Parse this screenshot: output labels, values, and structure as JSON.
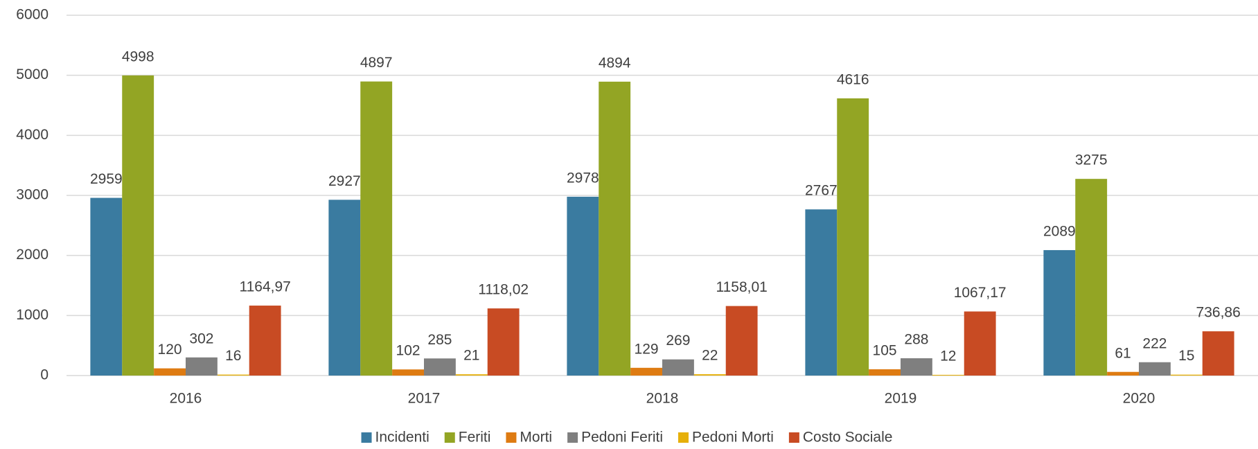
{
  "chart_data": {
    "type": "bar",
    "categories": [
      "2016",
      "2017",
      "2018",
      "2019",
      "2020"
    ],
    "series": [
      {
        "name": "Incidenti",
        "color": "#3a7ba0",
        "values": [
          2959,
          2927,
          2978,
          2767,
          2089
        ]
      },
      {
        "name": "Feriti",
        "color": "#93a524",
        "values": [
          4998,
          4897,
          4894,
          4616,
          3275
        ]
      },
      {
        "name": "Morti",
        "color": "#de7b12",
        "values": [
          120,
          102,
          129,
          105,
          61
        ]
      },
      {
        "name": "Pedoni Feriti",
        "color": "#7f7f7f",
        "values": [
          302,
          285,
          269,
          288,
          222
        ]
      },
      {
        "name": "Pedoni Morti",
        "color": "#e6b00a",
        "values": [
          16,
          21,
          22,
          12,
          15
        ]
      },
      {
        "name": "Costo Sociale",
        "color": "#c84b23",
        "values": [
          1164.97,
          1118.02,
          1158.01,
          1067.17,
          736.86
        ],
        "value_labels": [
          "1164,97",
          "1118,02",
          "1158,01",
          "1067,17",
          "736,86"
        ]
      }
    ],
    "ylim": [
      0,
      6000
    ],
    "yticks": [
      0,
      1000,
      2000,
      3000,
      4000,
      5000,
      6000
    ],
    "grid": true,
    "legend": "bottom"
  }
}
